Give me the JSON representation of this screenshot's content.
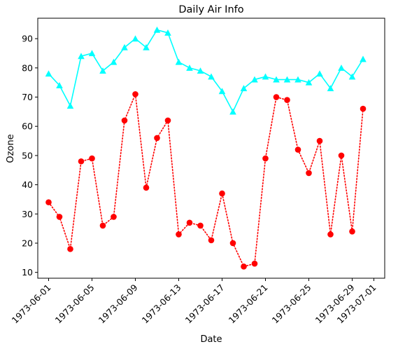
{
  "chart_data": {
    "type": "line",
    "title": "Daily Air Info",
    "xlabel": "Date",
    "ylabel": "Ozone",
    "x_ticks": [
      "1973-06-01",
      "1973-06-05",
      "1973-06-09",
      "1973-06-13",
      "1973-06-17",
      "1973-06-21",
      "1973-06-25",
      "1973-06-29",
      "1973-07-01"
    ],
    "y_ticks": [
      10,
      20,
      30,
      40,
      50,
      60,
      70,
      80,
      90
    ],
    "ylim": [
      8,
      97
    ],
    "xlim": [
      "1973-05-31",
      "1973-07-02"
    ],
    "grid": false,
    "x": [
      "1973-06-01",
      "1973-06-02",
      "1973-06-03",
      "1973-06-04",
      "1973-06-05",
      "1973-06-06",
      "1973-06-07",
      "1973-06-08",
      "1973-06-09",
      "1973-06-10",
      "1973-06-11",
      "1973-06-12",
      "1973-06-13",
      "1973-06-14",
      "1973-06-15",
      "1973-06-16",
      "1973-06-17",
      "1973-06-18",
      "1973-06-19",
      "1973-06-20",
      "1973-06-21",
      "1973-06-22",
      "1973-06-23",
      "1973-06-24",
      "1973-06-25",
      "1973-06-26",
      "1973-06-27",
      "1973-06-28",
      "1973-06-29",
      "1973-06-30"
    ],
    "series": [
      {
        "color": "#00ffff",
        "marker": "triangle",
        "linestyle": "solid",
        "values": [
          78,
          74,
          67,
          84,
          85,
          79,
          82,
          87,
          90,
          87,
          93,
          92,
          82,
          80,
          79,
          77,
          72,
          65,
          73,
          76,
          77,
          76,
          76,
          76,
          75,
          78,
          73,
          80,
          77,
          83
        ]
      },
      {
        "color": "#ff0000",
        "marker": "circle",
        "linestyle": "dotted",
        "values": [
          34,
          29,
          18,
          48,
          49,
          26,
          29,
          62,
          71,
          39,
          56,
          62,
          23,
          27,
          26,
          21,
          37,
          20,
          12,
          13,
          49,
          70,
          69,
          52,
          44,
          55,
          23,
          50,
          24,
          66
        ]
      }
    ]
  }
}
